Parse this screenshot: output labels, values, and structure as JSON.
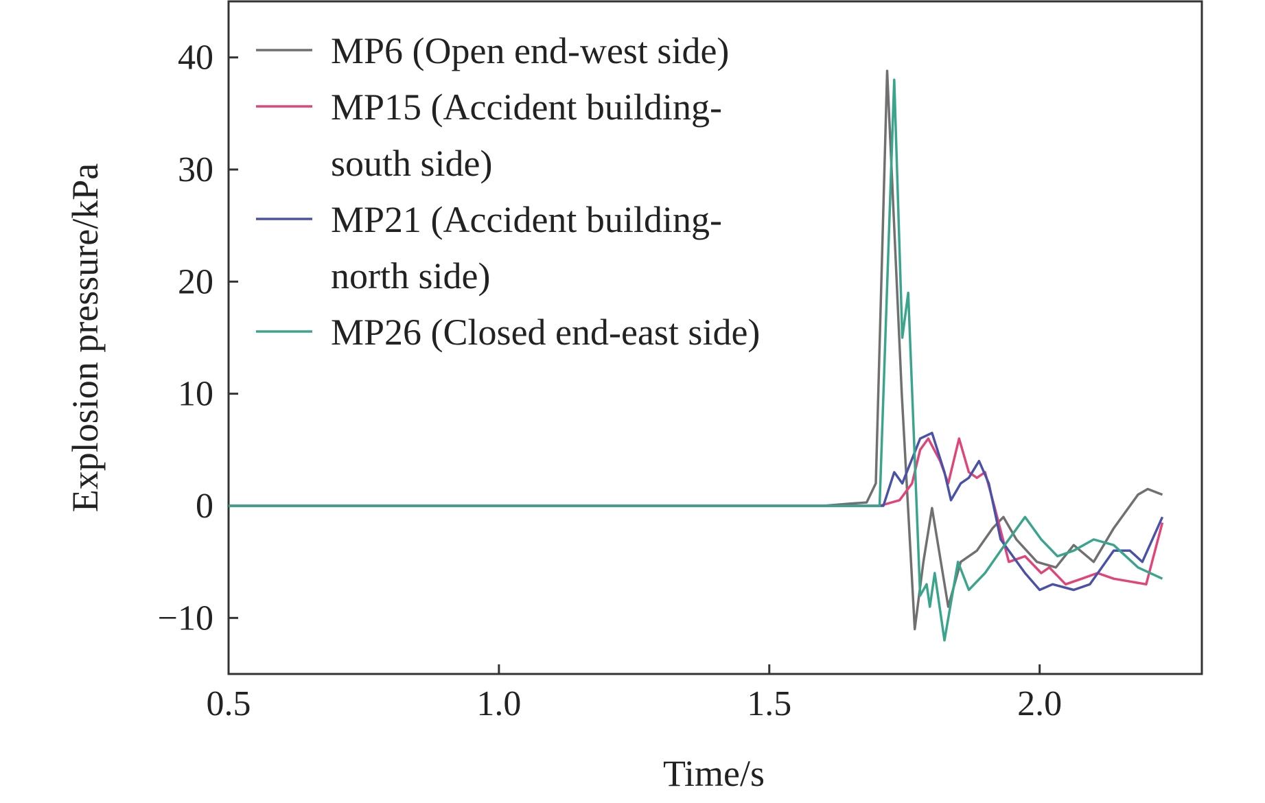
{
  "chart_data": {
    "type": "line",
    "xlabel": "Time/s",
    "ylabel": "Explosion pressure/kPa",
    "xlim": [
      0.5,
      2.3
    ],
    "ylim": [
      -15,
      45
    ],
    "xticks": [
      0.5,
      {
        "value": 1,
        "label": "1.0"
      },
      1.5,
      {
        "value": 2,
        "label": "2.0"
      }
    ],
    "yticks": [
      {
        "value": -10,
        "label": "−10"
      },
      0,
      10,
      20,
      30,
      40
    ],
    "legend": "upper left",
    "series": [
      {
        "name": "MP6 (Open end-west side)",
        "color": "#707070",
        "x": [
          0.5,
          1.6,
          1.65,
          1.68,
          1.697,
          1.718,
          1.745,
          1.769,
          1.785,
          1.801,
          1.831,
          1.854,
          1.884,
          1.913,
          1.933,
          1.957,
          1.995,
          2.03,
          2.063,
          2.1,
          2.137,
          2.182,
          2.2,
          2.227
        ],
        "values": [
          0,
          0,
          0.2,
          0.3,
          2,
          38.8,
          10,
          -11,
          -5,
          -0.2,
          -9,
          -5,
          -4,
          -2,
          -1,
          -3,
          -5,
          -5.5,
          -3.5,
          -5,
          -2,
          1,
          1.5,
          1
        ]
      },
      {
        "name": "MP15 (Accident building-south side)",
        "color": "#e0457a",
        "x": [
          0.5,
          1.6,
          1.704,
          1.741,
          1.764,
          1.779,
          1.794,
          1.816,
          1.831,
          1.851,
          1.869,
          1.884,
          1.899,
          1.916,
          1.943,
          1.973,
          2.003,
          2.018,
          2.048,
          2.078,
          2.107,
          2.137,
          2.197,
          2.227
        ],
        "values": [
          0,
          0,
          0,
          0.5,
          2,
          5,
          6,
          4,
          2,
          6,
          3,
          2.5,
          3,
          0,
          -5,
          -4.5,
          -6,
          -5.5,
          -7,
          -6.5,
          -6,
          -6.5,
          -7,
          -1.5
        ]
      },
      {
        "name": "MP21 (Accident building-north side)",
        "color": "#4a52a8",
        "x": [
          0.5,
          1.6,
          1.711,
          1.731,
          1.746,
          1.779,
          1.801,
          1.824,
          1.836,
          1.854,
          1.869,
          1.888,
          1.906,
          1.928,
          1.973,
          2.0,
          2.024,
          2.063,
          2.093,
          2.137,
          2.167,
          2.19,
          2.227
        ],
        "values": [
          0,
          0,
          0,
          3,
          2,
          6,
          6.5,
          3,
          0.5,
          2,
          2.5,
          4,
          2,
          -3,
          -6,
          -7.5,
          -7,
          -7.5,
          -7,
          -4,
          -4,
          -5,
          -1
        ]
      },
      {
        "name": "MP26 (Closed end-east side)",
        "color": "#3aa58c",
        "x": [
          0.5,
          1.6,
          1.704,
          1.731,
          1.746,
          1.757,
          1.779,
          1.791,
          1.797,
          1.806,
          1.824,
          1.849,
          1.869,
          1.899,
          1.928,
          1.958,
          1.973,
          2.003,
          2.033,
          2.063,
          2.1,
          2.137,
          2.182,
          2.227
        ],
        "values": [
          0,
          0,
          0,
          38,
          15,
          19,
          -8,
          -7,
          -9,
          -6,
          -12,
          -5,
          -7.5,
          -6,
          -4,
          -2,
          -1,
          -3,
          -4.5,
          -4,
          -3,
          -3.5,
          -5.5,
          -6.5
        ]
      }
    ]
  }
}
